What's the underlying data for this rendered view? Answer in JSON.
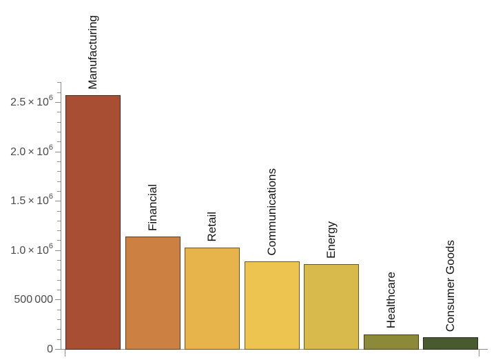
{
  "chart_data": {
    "type": "bar",
    "title": "",
    "xlabel": "",
    "ylabel": "",
    "categories": [
      "Manufacturing",
      "Financial",
      "Retail",
      "Communications",
      "Energy",
      "Healthcare",
      "Consumer Goods"
    ],
    "values": [
      2570000,
      1140000,
      1030000,
      890000,
      860000,
      150000,
      120000
    ],
    "bar_colors": [
      "#A84F33",
      "#CC8042",
      "#E6B44B",
      "#EEC450",
      "#D8B94B",
      "#8C8938",
      "#4A5A30"
    ],
    "bar_edge_colors": [
      "#4E2518",
      "#5C3A1E",
      "#6B541F",
      "#6F5B20",
      "#64561F",
      "#403F14",
      "#222B14"
    ],
    "ylim": [
      0,
      2700000
    ],
    "ymajor_step": 500000,
    "yminor_step": 100000,
    "yticks": [
      {
        "value": 0,
        "base": "0",
        "sup": ""
      },
      {
        "value": 500000,
        "base": "500 000",
        "sup": ""
      },
      {
        "value": 1000000,
        "base": "1.0 × 10",
        "sup": "6"
      },
      {
        "value": 1500000,
        "base": "1.5 × 10",
        "sup": "6"
      },
      {
        "value": 2000000,
        "base": "2.0 × 10",
        "sup": "6"
      },
      {
        "value": 2500000,
        "base": "2.5 × 10",
        "sup": "6"
      }
    ],
    "grid": false,
    "legend": null,
    "bar_label_position": "above-rotated-90",
    "colors": {
      "axis": "#8a8a8a",
      "tick_label": "#4a4a4a",
      "bar_label": "#111111",
      "background": "#ffffff"
    }
  }
}
